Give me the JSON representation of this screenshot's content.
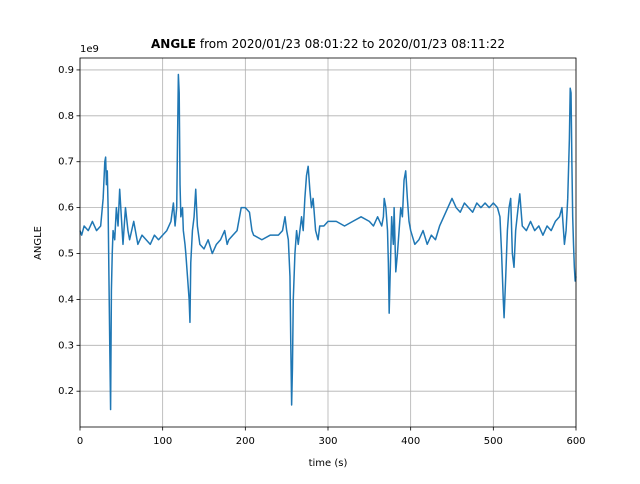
{
  "chart_data": {
    "type": "line",
    "title_bold": "ANGLE",
    "title": "from 2020/01/23 08:01:22 to 2020/01/23 08:11:22",
    "x_label": "time (s)",
    "y_label": "ANGLE",
    "y_offset_label": "1e9",
    "xlim": [
      0,
      600
    ],
    "xticks": [
      0,
      100,
      200,
      300,
      400,
      500,
      600
    ],
    "ylim": [
      0.122,
      0.926
    ],
    "yticks": [
      0.2,
      0.3,
      0.4,
      0.5,
      0.6,
      0.7,
      0.8,
      0.9
    ],
    "grid": true,
    "series": [
      {
        "name": "ANGLE",
        "color": "#1f77b4",
        "x": [
          0,
          2,
          5,
          10,
          15,
          20,
          25,
          28,
          30,
          31,
          32,
          33,
          34,
          35,
          36,
          37,
          38,
          39,
          40,
          42,
          44,
          46,
          48,
          50,
          52,
          55,
          58,
          60,
          65,
          70,
          75,
          80,
          85,
          90,
          95,
          100,
          105,
          110,
          113,
          115,
          117,
          118,
          119,
          120,
          121,
          122,
          124,
          125,
          127,
          128,
          130,
          132,
          133,
          134,
          136,
          138,
          140,
          142,
          145,
          150,
          155,
          160,
          165,
          170,
          175,
          178,
          180,
          185,
          190,
          195,
          200,
          205,
          208,
          210,
          220,
          230,
          240,
          245,
          248,
          250,
          252,
          254,
          255,
          256,
          257,
          258,
          260,
          262,
          264,
          266,
          268,
          270,
          272,
          274,
          276,
          278,
          280,
          282,
          285,
          288,
          290,
          295,
          300,
          310,
          320,
          330,
          340,
          350,
          355,
          360,
          365,
          367,
          368,
          370,
          372,
          373,
          374,
          375,
          377,
          379,
          380,
          382,
          384,
          386,
          388,
          390,
          392,
          394,
          396,
          398,
          400,
          405,
          410,
          415,
          420,
          425,
          430,
          435,
          440,
          445,
          450,
          455,
          460,
          465,
          470,
          475,
          480,
          485,
          490,
          495,
          500,
          505,
          508,
          510,
          512,
          513,
          515,
          517,
          519,
          521,
          523,
          525,
          527,
          530,
          532,
          535,
          540,
          545,
          550,
          555,
          560,
          565,
          570,
          575,
          580,
          583,
          586,
          588,
          590,
          592,
          593,
          594,
          595,
          596,
          597,
          598,
          599,
          600
        ],
        "values": [
          0.55,
          0.54,
          0.56,
          0.55,
          0.57,
          0.55,
          0.56,
          0.62,
          0.7,
          0.71,
          0.65,
          0.68,
          0.6,
          0.45,
          0.3,
          0.16,
          0.42,
          0.5,
          0.55,
          0.53,
          0.6,
          0.56,
          0.64,
          0.58,
          0.52,
          0.6,
          0.55,
          0.53,
          0.57,
          0.52,
          0.54,
          0.53,
          0.52,
          0.54,
          0.53,
          0.54,
          0.55,
          0.57,
          0.61,
          0.56,
          0.6,
          0.75,
          0.89,
          0.85,
          0.65,
          0.58,
          0.6,
          0.55,
          0.52,
          0.5,
          0.45,
          0.4,
          0.35,
          0.48,
          0.55,
          0.58,
          0.64,
          0.56,
          0.52,
          0.51,
          0.53,
          0.5,
          0.52,
          0.53,
          0.55,
          0.52,
          0.53,
          0.54,
          0.55,
          0.6,
          0.6,
          0.59,
          0.55,
          0.54,
          0.53,
          0.54,
          0.54,
          0.55,
          0.58,
          0.55,
          0.53,
          0.45,
          0.3,
          0.17,
          0.25,
          0.4,
          0.5,
          0.55,
          0.52,
          0.55,
          0.58,
          0.55,
          0.62,
          0.67,
          0.69,
          0.64,
          0.6,
          0.62,
          0.55,
          0.53,
          0.56,
          0.56,
          0.57,
          0.57,
          0.56,
          0.57,
          0.58,
          0.57,
          0.56,
          0.58,
          0.56,
          0.58,
          0.62,
          0.6,
          0.55,
          0.48,
          0.37,
          0.44,
          0.58,
          0.52,
          0.6,
          0.46,
          0.5,
          0.55,
          0.6,
          0.58,
          0.66,
          0.68,
          0.62,
          0.57,
          0.55,
          0.52,
          0.53,
          0.55,
          0.52,
          0.54,
          0.53,
          0.56,
          0.58,
          0.6,
          0.62,
          0.6,
          0.59,
          0.61,
          0.6,
          0.59,
          0.61,
          0.6,
          0.61,
          0.6,
          0.61,
          0.6,
          0.58,
          0.5,
          0.4,
          0.36,
          0.45,
          0.55,
          0.6,
          0.62,
          0.5,
          0.47,
          0.55,
          0.6,
          0.63,
          0.56,
          0.55,
          0.57,
          0.55,
          0.56,
          0.54,
          0.56,
          0.55,
          0.57,
          0.58,
          0.6,
          0.52,
          0.55,
          0.62,
          0.75,
          0.86,
          0.85,
          0.7,
          0.58,
          0.52,
          0.47,
          0.44,
          0.45
        ]
      }
    ]
  }
}
